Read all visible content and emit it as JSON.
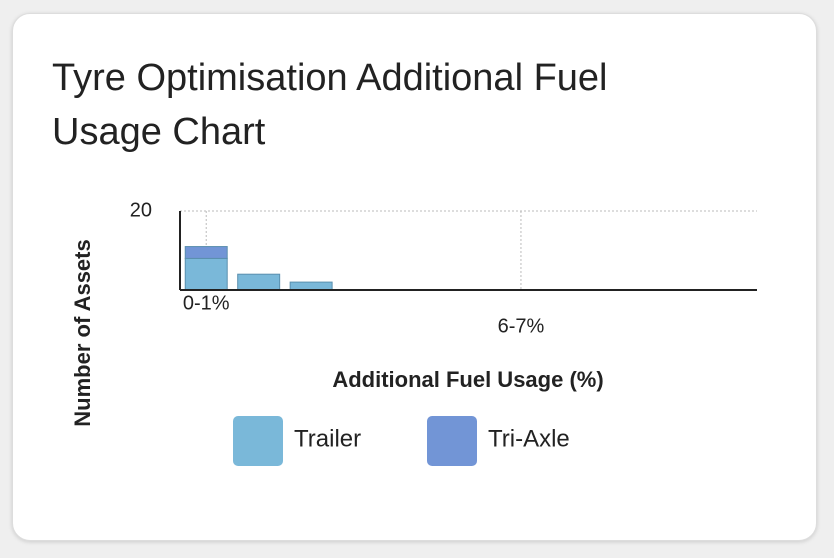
{
  "chart_data": {
    "type": "stacked_bar",
    "title": "Tyre Optimisation Additional Fuel Usage Chart",
    "x_label": "Additional Fuel Usage (%)",
    "y_label": "Number of Assets",
    "categories": [
      "0-1%",
      null,
      null,
      null,
      null,
      null,
      "6-7%",
      null,
      null,
      null,
      null
    ],
    "series": [
      {
        "name": "Trailer",
        "color": "#7ab8d9",
        "values": [
          8,
          4,
          2,
          0,
          0,
          0,
          0,
          0,
          0,
          0,
          0
        ]
      },
      {
        "name": "Tri-Axle",
        "color": "#7295d6",
        "values": [
          3,
          0,
          0,
          0,
          0,
          0,
          0,
          0,
          0,
          0,
          0
        ]
      }
    ],
    "ylim": [
      0,
      20
    ],
    "yticks": [
      20
    ],
    "grid": true
  }
}
